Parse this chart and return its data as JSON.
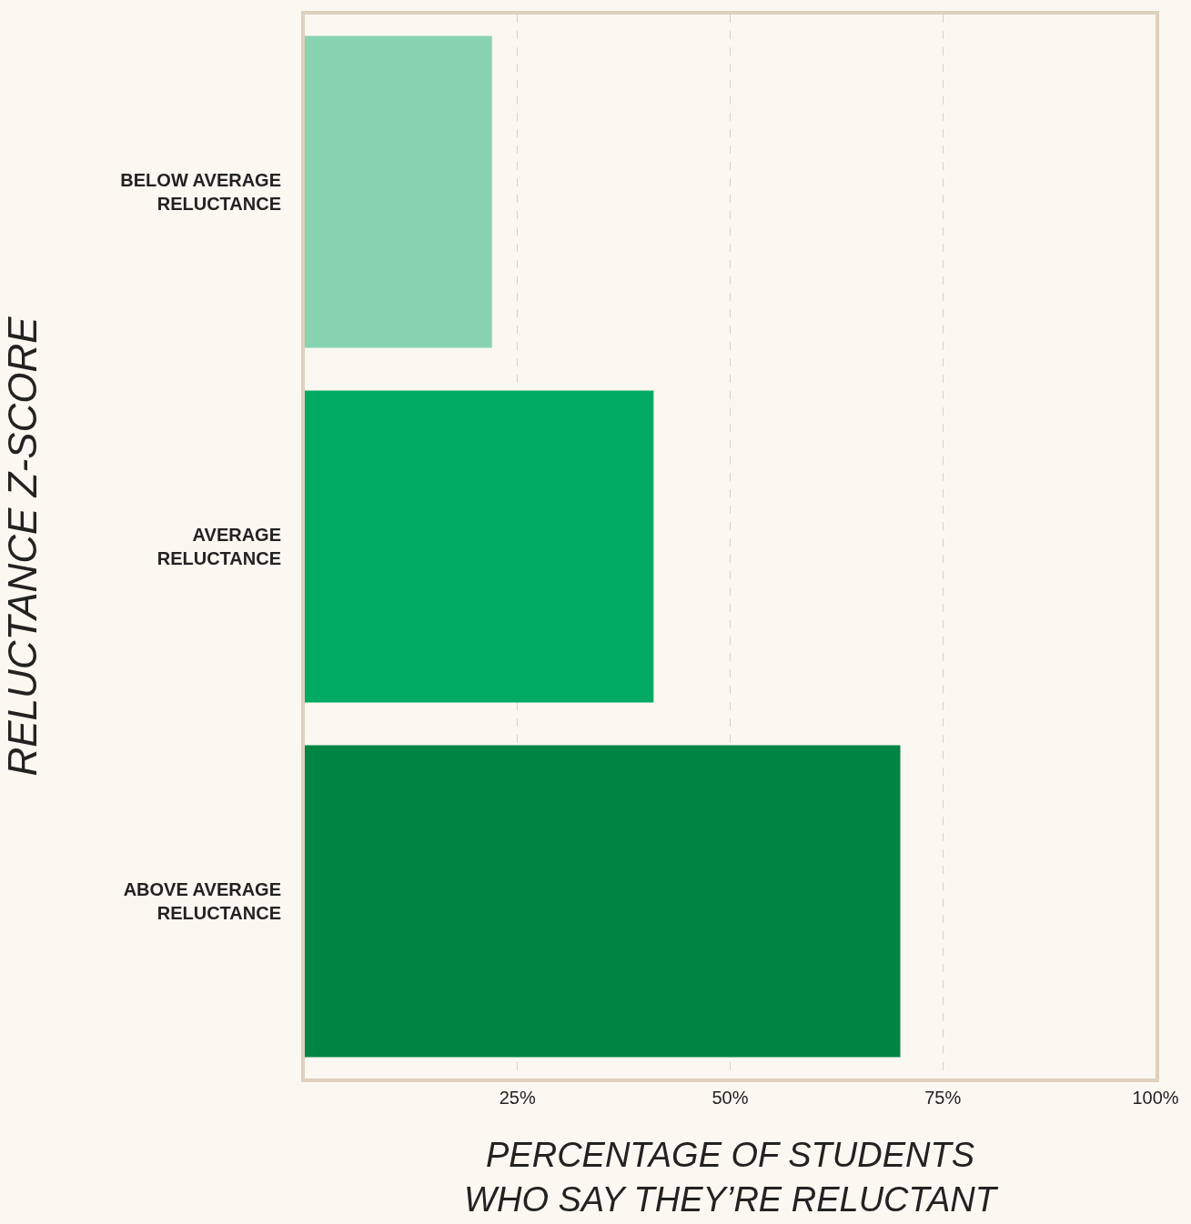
{
  "chart_data": {
    "type": "bar",
    "orientation": "horizontal",
    "categories": [
      "BELOW AVERAGE RELUCTANCE",
      "AVERAGE RELUCTANCE",
      "ABOVE AVERAGE RELUCTANCE"
    ],
    "values": [
      22,
      41,
      70
    ],
    "colors": [
      "#88d3b0",
      "#00aa63",
      "#008545"
    ],
    "xlabel": "PERCENTAGE OF STUDENTS WHO SAY THEY’RE RELUCTANT",
    "ylabel": "RELUCTANCE Z-SCORE",
    "xlim": [
      0,
      100
    ],
    "xticks": [
      {
        "value": 25,
        "label": "25%"
      },
      {
        "value": 50,
        "label": "50%"
      },
      {
        "value": 75,
        "label": "75%"
      },
      {
        "value": 100,
        "label": "100%"
      }
    ],
    "grid": "x",
    "legend": false
  }
}
